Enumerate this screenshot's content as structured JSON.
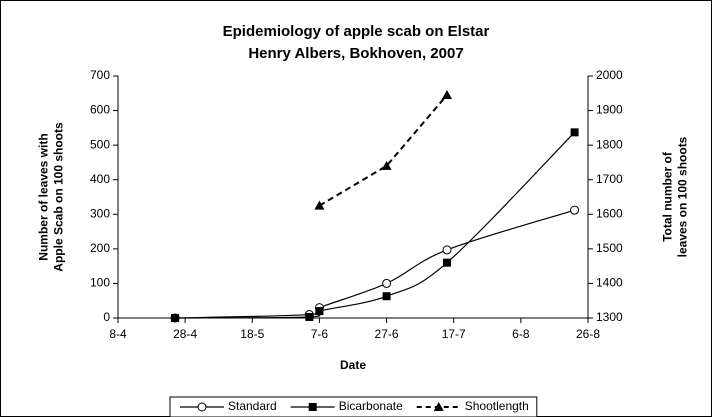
{
  "chart_data": {
    "type": "line",
    "title": "Epidemiology of apple scab on Elstar",
    "subtitle": "Henry Albers, Bokhoven, 2007",
    "xlabel": "Date",
    "ylabel": "Number of leaves with Apple Scab on 100 shoots",
    "y2label": "Total number of leaves on 100 shoots",
    "xlim": [
      "8-4",
      "26-8"
    ],
    "xticks": [
      "8-4",
      "28-4",
      "18-5",
      "7-6",
      "27-6",
      "17-7",
      "6-8",
      "26-8"
    ],
    "ylim": [
      0,
      700
    ],
    "yticks": [
      0,
      100,
      200,
      300,
      400,
      500,
      600,
      700
    ],
    "y2lim": [
      1300,
      2000
    ],
    "y2ticks": [
      1300,
      1400,
      1500,
      1600,
      1700,
      1800,
      1900,
      2000
    ],
    "legend": "bottom",
    "series": [
      {
        "name": "Standard",
        "color": "#000000",
        "marker": "circle",
        "x": [
          "25-4",
          "4-6",
          "7-6",
          "27-6",
          "15-7",
          "22-8"
        ],
        "values": [
          0,
          10,
          30,
          100,
          197,
          312
        ]
      },
      {
        "name": "Bicarbonate",
        "color": "#000000",
        "marker": "square",
        "x": [
          "25-4",
          "4-6",
          "7-6",
          "27-6",
          "15-7",
          "22-8"
        ],
        "values": [
          0,
          3,
          20,
          63,
          160,
          537
        ]
      },
      {
        "name": "Shootlength",
        "color": "#000000",
        "marker": "triangle",
        "dashed": true,
        "axis": "y2",
        "x": [
          "7-6",
          "27-6",
          "15-7"
        ],
        "values": [
          1625,
          1740,
          1945
        ]
      }
    ]
  }
}
